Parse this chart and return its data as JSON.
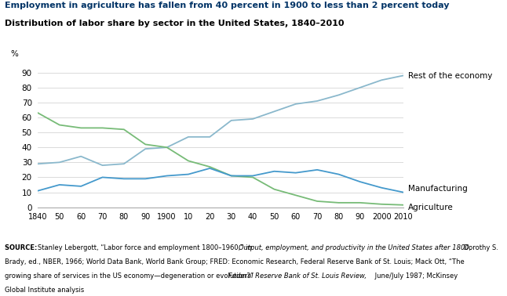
{
  "title_main": "Employment in agriculture has fallen from 40 percent in 1900 to less than 2 percent today",
  "title_sub": "Distribution of labor share by sector in the United States, 1840–2010",
  "ylabel": "%",
  "years": [
    1840,
    1850,
    1860,
    1870,
    1880,
    1890,
    1900,
    1910,
    1920,
    1930,
    1940,
    1950,
    1960,
    1970,
    1980,
    1990,
    2000,
    2010
  ],
  "agriculture": [
    63,
    55,
    53,
    53,
    52,
    42,
    40,
    31,
    27,
    21,
    20,
    12,
    8,
    4,
    3,
    3,
    2,
    1.5
  ],
  "manufacturing": [
    11,
    15,
    14,
    20,
    19,
    19,
    21,
    22,
    26,
    21,
    21,
    24,
    23,
    25,
    22,
    17,
    13,
    10
  ],
  "rest_of_economy": [
    29,
    30,
    34,
    28,
    29,
    39,
    40,
    47,
    47,
    58,
    59,
    64,
    69,
    71,
    75,
    80,
    85,
    88
  ],
  "color_agriculture": "#77bb77",
  "color_manufacturing": "#4499cc",
  "color_rest": "#8ab8cc",
  "source_text_bold": "SOURCE: ",
  "source_text_normal": " Stanley Lebergott, “Labor force and employment 1800–1960,” in  Output, employment, and productivity in the United States after 1800, Dorothy S.\nBrady, ed., NBER, 1966; World Data Bank, World Bank Group; FRED: Economic Research, Federal Reserve Bank of St. Louis; Mack Ott, “The\ngrowing share of services in the US economy—degeneration or evolution?”  Federal Reserve Bank of St. Louis Review, June/July 1987; McKinsey\nGlobal Institute analysis",
  "source_line1_normal": "Stanley Lebergott, “Labor force and employment 1800–1960,” in ",
  "source_line1_italic": "Output, employment, and productivity in the United States after 1800,",
  "source_line1_normal2": " Dorothy S.",
  "source_line2": "Brady, ed., NBER, 1966; World Data Bank, World Bank Group; FRED: Economic Research, Federal Reserve Bank of St. Louis; Mack Ott, “The",
  "source_line3_normal": "growing share of services in the US economy—degeneration or evolution?” ",
  "source_line3_italic": "Federal Reserve Bank of St. Louis Review,",
  "source_line3_normal2": " June/July 1987; McKinsey",
  "source_line4": "Global Institute analysis",
  "xtick_labels": [
    "1840",
    "50",
    "60",
    "70",
    "80",
    "90",
    "1900",
    "10",
    "20",
    "30",
    "40",
    "50",
    "60",
    "70",
    "80",
    "90",
    "2000",
    "2010"
  ],
  "yticks": [
    0,
    10,
    20,
    30,
    40,
    50,
    60,
    70,
    80,
    90
  ],
  "ylim": [
    0,
    95
  ],
  "xlim": [
    1840,
    2010
  ]
}
